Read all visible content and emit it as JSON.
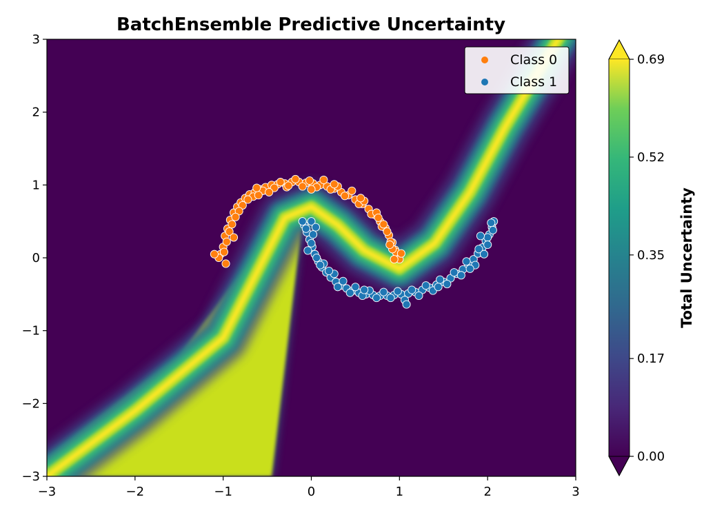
{
  "chart_data": {
    "type": "heatmap",
    "title": "BatchEnsemble Predictive Uncertainty",
    "xlabel": "",
    "ylabel": "",
    "xlim": [
      -3,
      3
    ],
    "ylim": [
      -3,
      3
    ],
    "x_ticks": [
      -3,
      -2,
      -1,
      0,
      1,
      2,
      3
    ],
    "y_ticks": [
      -3,
      -2,
      -1,
      0,
      1,
      2,
      3
    ],
    "x_tick_labels": [
      "−3",
      "−2",
      "−1",
      "0",
      "1",
      "2",
      "3"
    ],
    "y_tick_labels": [
      "−3",
      "−2",
      "−1",
      "0",
      "1",
      "2",
      "3"
    ],
    "grid": false,
    "heatmap": {
      "colormap": "viridis",
      "colorbar_label": "Total Uncertainty",
      "range": [
        0.0,
        0.69
      ],
      "colorbar_ticks": [
        0.0,
        0.17,
        0.35,
        0.52,
        0.69
      ],
      "colorbar_tick_labels": [
        "0.00",
        "0.17",
        "0.35",
        "0.52",
        "0.69"
      ],
      "colorbar_extend": "both",
      "high_uncertainty_band_centerline": [
        [
          -3.0,
          -3.0
        ],
        [
          -2.0,
          -2.1
        ],
        [
          -1.0,
          -1.1
        ],
        [
          -0.3,
          0.55
        ],
        [
          0.0,
          0.7
        ],
        [
          0.3,
          0.45
        ],
        [
          0.6,
          0.1
        ],
        [
          1.0,
          -0.15
        ],
        [
          1.4,
          0.2
        ],
        [
          1.8,
          0.9
        ],
        [
          2.2,
          1.8
        ],
        [
          2.6,
          2.6
        ],
        [
          3.0,
          3.4
        ]
      ],
      "saturated_region_polygon": [
        [
          -3.0,
          -3.0
        ],
        [
          -3.0,
          -2.75
        ],
        [
          -2.2,
          -2.0
        ],
        [
          -1.5,
          -1.35
        ],
        [
          -0.35,
          0.5
        ],
        [
          -0.1,
          0.55
        ],
        [
          -0.45,
          -3.0
        ]
      ]
    },
    "legend": {
      "position": "top-right",
      "entries": [
        {
          "label": "Class 0",
          "color": "#ff7f0e"
        },
        {
          "label": "Class 1",
          "color": "#1f77b4"
        }
      ]
    },
    "series": [
      {
        "name": "Class 0",
        "color": "#ff7f0e",
        "points": [
          [
            -1.03,
            0.05
          ],
          [
            -1.0,
            0.15
          ],
          [
            -0.98,
            0.3
          ],
          [
            -0.95,
            0.4
          ],
          [
            -0.92,
            0.52
          ],
          [
            -0.88,
            0.62
          ],
          [
            -0.84,
            0.7
          ],
          [
            -0.8,
            0.76
          ],
          [
            -0.75,
            0.82
          ],
          [
            -0.7,
            0.87
          ],
          [
            -0.64,
            0.9
          ],
          [
            -0.58,
            0.94
          ],
          [
            -0.52,
            0.97
          ],
          [
            -0.45,
            1.0
          ],
          [
            -0.38,
            1.01
          ],
          [
            -0.3,
            1.02
          ],
          [
            -0.22,
            1.04
          ],
          [
            -0.14,
            1.04
          ],
          [
            -0.06,
            1.03
          ],
          [
            0.02,
            1.02
          ],
          [
            0.1,
            1.0
          ],
          [
            0.18,
            0.98
          ],
          [
            0.26,
            0.95
          ],
          [
            0.34,
            0.9
          ],
          [
            0.42,
            0.86
          ],
          [
            0.5,
            0.8
          ],
          [
            0.58,
            0.74
          ],
          [
            0.65,
            0.67
          ],
          [
            0.72,
            0.59
          ],
          [
            0.78,
            0.5
          ],
          [
            0.84,
            0.41
          ],
          [
            0.88,
            0.31
          ],
          [
            0.92,
            0.21
          ],
          [
            0.95,
            0.11
          ],
          [
            0.97,
            0.02
          ],
          [
            1.0,
            -0.02
          ],
          [
            -1.05,
            0.0
          ],
          [
            -0.96,
            0.22
          ],
          [
            -0.9,
            0.46
          ],
          [
            -0.78,
            0.72
          ],
          [
            -0.66,
            0.84
          ],
          [
            -0.55,
            0.92
          ],
          [
            -0.42,
            0.96
          ],
          [
            -0.28,
            0.97
          ],
          [
            -0.1,
            0.98
          ],
          [
            0.06,
            0.97
          ],
          [
            0.22,
            0.94
          ],
          [
            0.38,
            0.85
          ],
          [
            0.54,
            0.74
          ],
          [
            0.68,
            0.6
          ],
          [
            0.8,
            0.43
          ],
          [
            0.9,
            0.22
          ],
          [
            -0.93,
            0.36
          ],
          [
            -0.82,
            0.64
          ],
          [
            -0.6,
            0.86
          ],
          [
            -0.35,
            1.04
          ],
          [
            -0.02,
            1.06
          ],
          [
            0.3,
            0.98
          ],
          [
            0.6,
            0.78
          ],
          [
            0.82,
            0.46
          ],
          [
            0.96,
            0.08
          ],
          [
            -1.1,
            0.05
          ],
          [
            -0.97,
            -0.08
          ],
          [
            -0.88,
            0.28
          ],
          [
            -0.72,
            0.8
          ],
          [
            -0.48,
            0.9
          ],
          [
            -0.18,
            1.08
          ],
          [
            0.14,
            1.07
          ],
          [
            0.46,
            0.92
          ],
          [
            0.74,
            0.62
          ],
          [
            0.86,
            0.36
          ],
          [
            0.92,
            0.12
          ],
          [
            1.02,
            0.06
          ],
          [
            -0.99,
            0.08
          ],
          [
            -0.86,
            0.56
          ],
          [
            -0.62,
            0.96
          ],
          [
            -0.26,
            0.99
          ],
          [
            0.0,
            0.94
          ],
          [
            0.26,
            1.01
          ],
          [
            0.56,
            0.82
          ],
          [
            0.76,
            0.55
          ],
          [
            0.89,
            0.18
          ],
          [
            0.94,
            -0.02
          ]
        ]
      },
      {
        "name": "Class 1",
        "color": "#1f77b4",
        "points": [
          [
            -0.08,
            0.45
          ],
          [
            -0.05,
            0.35
          ],
          [
            -0.02,
            0.25
          ],
          [
            0.01,
            0.15
          ],
          [
            0.04,
            0.05
          ],
          [
            0.08,
            -0.05
          ],
          [
            0.12,
            -0.13
          ],
          [
            0.17,
            -0.2
          ],
          [
            0.22,
            -0.27
          ],
          [
            0.28,
            -0.33
          ],
          [
            0.34,
            -0.38
          ],
          [
            0.4,
            -0.42
          ],
          [
            0.47,
            -0.45
          ],
          [
            0.54,
            -0.48
          ],
          [
            0.62,
            -0.5
          ],
          [
            0.7,
            -0.51
          ],
          [
            0.78,
            -0.52
          ],
          [
            0.86,
            -0.52
          ],
          [
            0.94,
            -0.51
          ],
          [
            1.02,
            -0.5
          ],
          [
            1.1,
            -0.49
          ],
          [
            1.18,
            -0.47
          ],
          [
            1.26,
            -0.44
          ],
          [
            1.34,
            -0.41
          ],
          [
            1.42,
            -0.37
          ],
          [
            1.5,
            -0.33
          ],
          [
            1.58,
            -0.28
          ],
          [
            1.65,
            -0.22
          ],
          [
            1.72,
            -0.16
          ],
          [
            1.78,
            -0.09
          ],
          [
            1.84,
            -0.02
          ],
          [
            1.89,
            0.06
          ],
          [
            1.94,
            0.14
          ],
          [
            1.98,
            0.23
          ],
          [
            2.02,
            0.32
          ],
          [
            2.05,
            0.42
          ],
          [
            2.07,
            0.5
          ],
          [
            -0.1,
            0.5
          ],
          [
            0.0,
            0.5
          ],
          [
            0.05,
            0.42
          ],
          [
            -0.04,
            0.1
          ],
          [
            0.06,
            0.0
          ],
          [
            0.14,
            -0.08
          ],
          [
            0.26,
            -0.22
          ],
          [
            0.36,
            -0.32
          ],
          [
            0.5,
            -0.4
          ],
          [
            0.66,
            -0.45
          ],
          [
            0.82,
            -0.47
          ],
          [
            0.98,
            -0.46
          ],
          [
            1.14,
            -0.44
          ],
          [
            1.3,
            -0.38
          ],
          [
            1.46,
            -0.3
          ],
          [
            1.62,
            -0.2
          ],
          [
            1.76,
            -0.05
          ],
          [
            1.9,
            0.12
          ],
          [
            2.0,
            0.28
          ],
          [
            2.04,
            0.48
          ],
          [
            0.02,
            0.32
          ],
          [
            0.1,
            -0.1
          ],
          [
            0.3,
            -0.4
          ],
          [
            0.58,
            -0.52
          ],
          [
            0.9,
            -0.55
          ],
          [
            1.06,
            -0.58
          ],
          [
            1.22,
            -0.52
          ],
          [
            1.38,
            -0.45
          ],
          [
            1.54,
            -0.36
          ],
          [
            1.7,
            -0.24
          ],
          [
            1.86,
            -0.1
          ],
          [
            1.96,
            0.05
          ],
          [
            2.0,
            0.18
          ],
          [
            -0.06,
            0.4
          ],
          [
            0.0,
            0.2
          ],
          [
            0.44,
            -0.48
          ],
          [
            0.74,
            -0.55
          ],
          [
            1.08,
            -0.64
          ],
          [
            1.44,
            -0.4
          ],
          [
            1.8,
            -0.15
          ],
          [
            1.92,
            0.3
          ],
          [
            2.06,
            0.38
          ],
          [
            0.2,
            -0.18
          ],
          [
            0.6,
            -0.44
          ]
        ]
      }
    ]
  }
}
